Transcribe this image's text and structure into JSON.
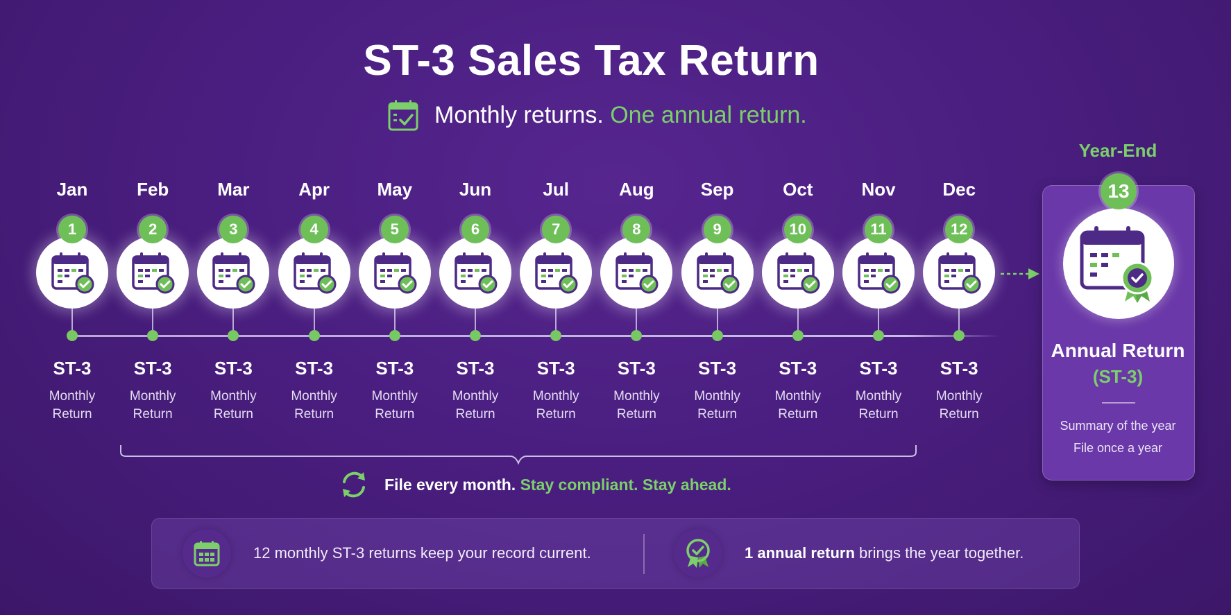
{
  "title": "ST-3 Sales Tax Return",
  "subtitle": {
    "lead": "Monthly returns.",
    "accent": "One annual return."
  },
  "months": [
    {
      "name": "Jan",
      "number": "1",
      "code": "ST-3",
      "line1": "Monthly",
      "line2": "Return"
    },
    {
      "name": "Feb",
      "number": "2",
      "code": "ST-3",
      "line1": "Monthly",
      "line2": "Return"
    },
    {
      "name": "Mar",
      "number": "3",
      "code": "ST-3",
      "line1": "Monthly",
      "line2": "Return"
    },
    {
      "name": "Apr",
      "number": "4",
      "code": "ST-3",
      "line1": "Monthly",
      "line2": "Return"
    },
    {
      "name": "May",
      "number": "5",
      "code": "ST-3",
      "line1": "Monthly",
      "line2": "Return"
    },
    {
      "name": "Jun",
      "number": "6",
      "code": "ST-3",
      "line1": "Monthly",
      "line2": "Return"
    },
    {
      "name": "Jul",
      "number": "7",
      "code": "ST-3",
      "line1": "Monthly",
      "line2": "Return"
    },
    {
      "name": "Aug",
      "number": "8",
      "code": "ST-3",
      "line1": "Monthly",
      "line2": "Return"
    },
    {
      "name": "Sep",
      "number": "9",
      "code": "ST-3",
      "line1": "Monthly",
      "line2": "Return"
    },
    {
      "name": "Oct",
      "number": "10",
      "code": "ST-3",
      "line1": "Monthly",
      "line2": "Return"
    },
    {
      "name": "Nov",
      "number": "11",
      "code": "ST-3",
      "line1": "Monthly",
      "line2": "Return"
    },
    {
      "name": "Dec",
      "number": "12",
      "code": "ST-3",
      "line1": "Monthly",
      "line2": "Return"
    }
  ],
  "annual": {
    "label": "Year-End",
    "number": "13",
    "title": "Annual Return",
    "code": "(ST-3)",
    "line1": "Summary of the year",
    "line2": "File once a year"
  },
  "slogan": {
    "lead": "File every month.",
    "accent": "Stay compliant. Stay ahead."
  },
  "footer": {
    "left": {
      "count": "12",
      "text": "monthly ST-3 returns keep your record current."
    },
    "right": {
      "bold": "1 annual return",
      "text": "brings the year together."
    }
  },
  "colors": {
    "background": "#4a1e80",
    "accent_green": "#7ccf6a",
    "badge_green": "#6fbf59",
    "calendar_purple": "#4d2a85"
  }
}
